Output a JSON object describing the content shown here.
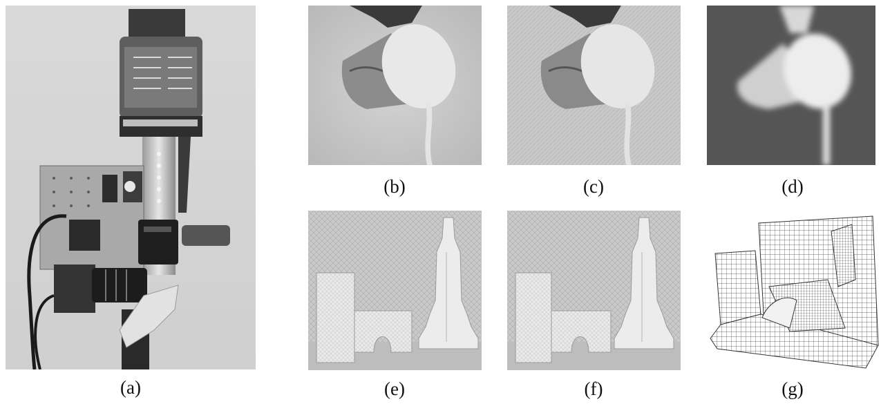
{
  "figure": {
    "panels": [
      {
        "id": "a",
        "label": "(a)",
        "content": "camera-rig-photo"
      },
      {
        "id": "b",
        "label": "(b)",
        "content": "pouring-cup-image"
      },
      {
        "id": "c",
        "label": "(c)",
        "content": "pouring-cup-image-textured"
      },
      {
        "id": "d",
        "label": "(d)",
        "content": "pouring-cup-blurred"
      },
      {
        "id": "e",
        "label": "(e)",
        "content": "block-scene-image"
      },
      {
        "id": "f",
        "label": "(f)",
        "content": "block-scene-image-2"
      },
      {
        "id": "g",
        "label": "(g)",
        "content": "depth-mesh-reconstruction"
      }
    ]
  }
}
